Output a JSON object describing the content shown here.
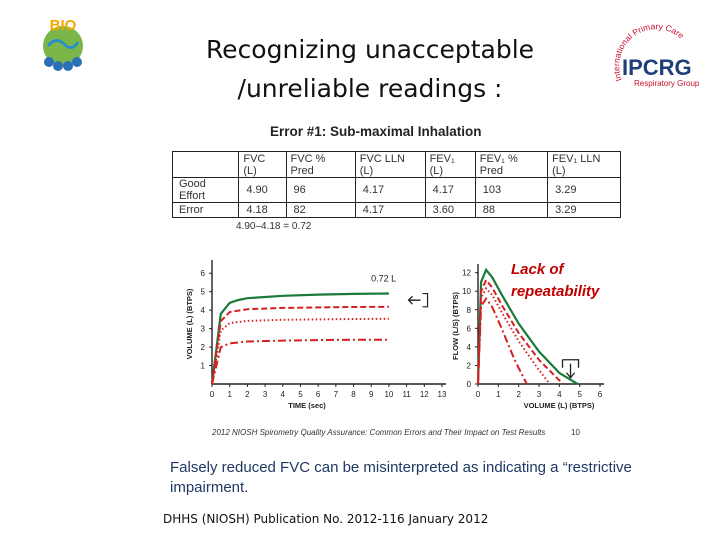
{
  "slide": {
    "title_lines": [
      "Recognizing unacceptable",
      "/unreliable readings :"
    ],
    "logo_left": "BIO",
    "logo_right": {
      "arc_text": "International Primary Care",
      "abbr": "IPCRG",
      "sub": "Respiratory Group",
      "brand_color": "#c8102e",
      "abbr_color": "#1f3f7a"
    }
  },
  "figure": {
    "title": "Error #1:  Sub-maximal Inhalation",
    "table": {
      "headers": [
        "",
        "FVC (L)",
        "FVC % Pred",
        "FVC LLN (L)",
        "FEV₁ (L)",
        "FEV₁ % Pred",
        "FEV₁ LLN (L)"
      ],
      "rows": [
        [
          "Good Effort",
          "4.90",
          "96",
          "4.17",
          "4.17",
          "103",
          "3.29"
        ],
        [
          "Error",
          "4.18",
          "82",
          "4.17",
          "3.60",
          "88",
          "3.29"
        ]
      ]
    },
    "formula": "4.90–4.18 = 0.72",
    "annotation": "Lack of repeatability",
    "caption": "2012 NIOSH Spirometry Quality Assurance: Common Errors and Their Impact on Test Results",
    "caption_page": "10"
  },
  "chart_data": [
    {
      "type": "line",
      "xlabel": "TIME (sec)",
      "ylabel": "VOLUME (L) (BTPS)",
      "x_ticks": [
        0,
        1,
        2,
        3,
        4,
        5,
        6,
        7,
        8,
        9,
        10,
        11,
        12,
        13
      ],
      "y_ticks": [
        1,
        2,
        3,
        4,
        5,
        6
      ],
      "xlim": [
        0,
        13
      ],
      "ylim": [
        0,
        6.5
      ],
      "annotation": "0.72 L",
      "series": [
        {
          "style": "solid",
          "color": "#1a7a3a",
          "x": [
            0,
            0.5,
            1,
            1.5,
            2,
            4,
            6,
            8,
            10
          ],
          "y": [
            0,
            3.8,
            4.4,
            4.55,
            4.65,
            4.78,
            4.84,
            4.88,
            4.9
          ]
        },
        {
          "style": "dashed",
          "color": "#d42020",
          "x": [
            0,
            0.5,
            1,
            2,
            4,
            6,
            8,
            10
          ],
          "y": [
            0,
            3.4,
            3.9,
            4.05,
            4.12,
            4.15,
            4.17,
            4.18
          ]
        },
        {
          "style": "dotted",
          "color": "#d42020",
          "x": [
            0,
            0.5,
            1,
            2,
            4,
            6,
            8,
            10
          ],
          "y": [
            0,
            2.9,
            3.3,
            3.42,
            3.48,
            3.5,
            3.52,
            3.53
          ]
        },
        {
          "style": "dashdot",
          "color": "#d42020",
          "x": [
            0,
            0.5,
            1,
            2,
            4,
            6,
            8,
            10
          ],
          "y": [
            0,
            2.0,
            2.2,
            2.3,
            2.35,
            2.38,
            2.4,
            2.4
          ]
        }
      ]
    },
    {
      "type": "line",
      "xlabel": "VOLUME (L) (BTPS)",
      "ylabel": "FLOW (L/S) (BTPS)",
      "x_ticks": [
        0,
        1,
        2,
        3,
        4,
        5,
        6
      ],
      "y_ticks": [
        0,
        2,
        4,
        6,
        8,
        10,
        12
      ],
      "xlim": [
        0,
        6
      ],
      "ylim": [
        0,
        12.5
      ],
      "series": [
        {
          "style": "solid",
          "color": "#1a7a3a",
          "x": [
            0,
            0.15,
            0.4,
            0.7,
            1.2,
            2,
            3,
            4,
            4.9
          ],
          "y": [
            0,
            11,
            12.3,
            11.5,
            9.5,
            6.5,
            3.5,
            1.2,
            0
          ]
        },
        {
          "style": "dashed",
          "color": "#d42020",
          "x": [
            0,
            0.15,
            0.4,
            0.7,
            1.2,
            2,
            3,
            4.18
          ],
          "y": [
            0,
            10,
            11.2,
            10.4,
            8.4,
            5.5,
            2.6,
            0
          ]
        },
        {
          "style": "dotted",
          "color": "#d42020",
          "x": [
            0,
            0.15,
            0.4,
            0.7,
            1.2,
            2,
            3,
            3.53
          ],
          "y": [
            0,
            9.3,
            10.3,
            9.6,
            7.6,
            4.6,
            1.5,
            0
          ]
        },
        {
          "style": "dashdot",
          "color": "#d42020",
          "x": [
            0,
            0.15,
            0.4,
            0.7,
            1.2,
            1.8,
            2.4
          ],
          "y": [
            0,
            8.4,
            9.2,
            8.3,
            5.8,
            2.6,
            0
          ]
        }
      ]
    }
  ],
  "body_text": "Falsely reduced FVC can be misinterpreted as indicating a “restrictive impairment.",
  "reference": "DHHS (NIOSH) Publication No. 2012-116 January 2012"
}
